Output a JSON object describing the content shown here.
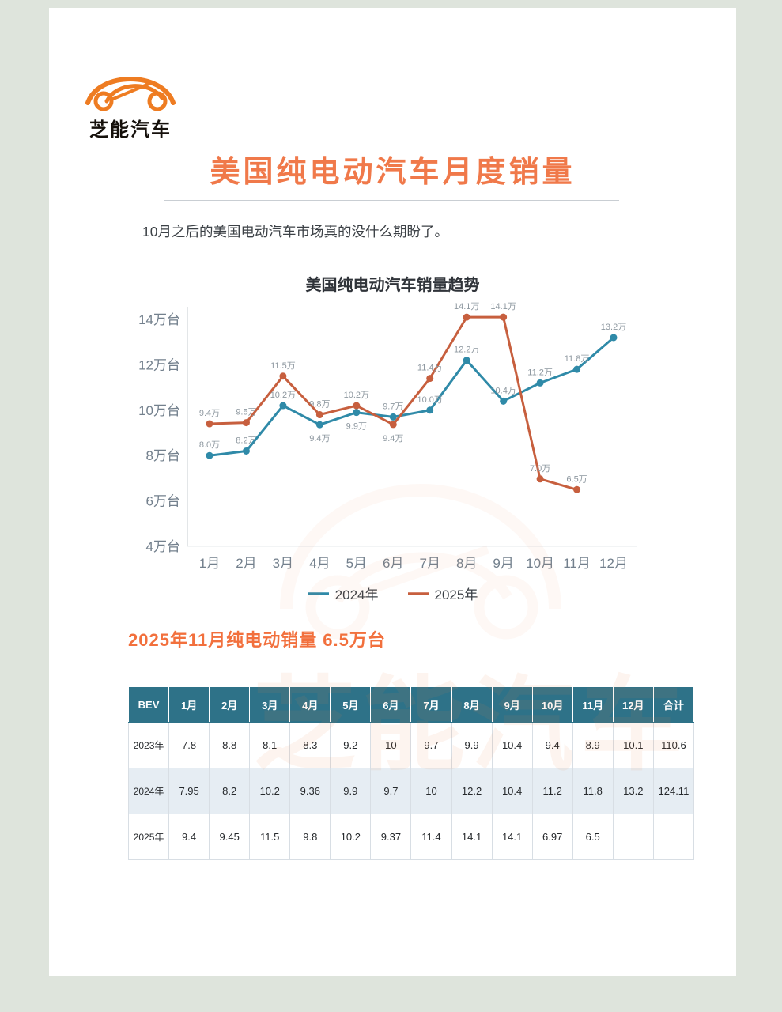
{
  "page": {
    "brand": {
      "logo_text": "芝能汽车"
    },
    "title": "美国纯电动汽车月度销量",
    "intro": "10月之后的美国电动汽车市场真的没什么期盼了。",
    "callout": "2025年11月纯电动销量  6.5万台",
    "watermark_text": "芝能汽车"
  },
  "colors": {
    "accent_orange": "#f0794a",
    "line_2024": "#2f8aa8",
    "line_2025": "#c75f3e",
    "table_header_bg": "#2e7288",
    "row_alt_bg": "#e6edf3",
    "axis_text": "#73808d"
  },
  "chart_data": {
    "type": "line",
    "title": "美国纯电动汽车销量趋势",
    "x": [
      "1月",
      "2月",
      "3月",
      "4月",
      "5月",
      "6月",
      "7月",
      "8月",
      "9月",
      "10月",
      "11月",
      "12月"
    ],
    "y_unit": "万台",
    "ylim": [
      4,
      14
    ],
    "yticks": [
      14,
      12,
      10,
      8,
      6,
      4
    ],
    "grid": false,
    "legend_position": "bottom",
    "series": [
      {
        "name": "2024年",
        "color": "#2f8aa8",
        "values": [
          8.0,
          8.2,
          10.2,
          9.36,
          9.9,
          9.7,
          10.0,
          12.2,
          10.4,
          11.2,
          11.8,
          13.2
        ],
        "labels": [
          "8.0万",
          "8.2万",
          "10.2万",
          "9.4万",
          "9.9万",
          "9.7万",
          "10.0万",
          "12.2万",
          "10.4万",
          "11.2万",
          "11.8万",
          "13.2万"
        ]
      },
      {
        "name": "2025年",
        "color": "#c75f3e",
        "values": [
          9.4,
          9.45,
          11.5,
          9.8,
          10.2,
          9.37,
          11.4,
          14.1,
          14.1,
          6.97,
          6.5,
          null
        ],
        "labels": [
          "9.4万",
          "9.5万",
          "11.5万",
          "9.8万",
          "10.2万",
          "9.4万",
          "11.4万",
          "14.1万",
          "14.1万",
          "7.0万",
          "6.5万",
          ""
        ]
      }
    ]
  },
  "table": {
    "headers": [
      "BEV",
      "1月",
      "2月",
      "3月",
      "4月",
      "5月",
      "6月",
      "7月",
      "8月",
      "9月",
      "10月",
      "11月",
      "12月",
      "合计"
    ],
    "rows": [
      {
        "label": "2023年",
        "values": [
          "7.8",
          "8.8",
          "8.1",
          "8.3",
          "9.2",
          "10",
          "9.7",
          "9.9",
          "10.4",
          "9.4",
          "8.9",
          "10.1",
          "110.6"
        ]
      },
      {
        "label": "2024年",
        "values": [
          "7.95",
          "8.2",
          "10.2",
          "9.36",
          "9.9",
          "9.7",
          "10",
          "12.2",
          "10.4",
          "11.2",
          "11.8",
          "13.2",
          "124.11"
        ]
      },
      {
        "label": "2025年",
        "values": [
          "9.4",
          "9.45",
          "11.5",
          "9.8",
          "10.2",
          "9.37",
          "11.4",
          "14.1",
          "14.1",
          "6.97",
          "6.5",
          "",
          ""
        ]
      }
    ]
  }
}
